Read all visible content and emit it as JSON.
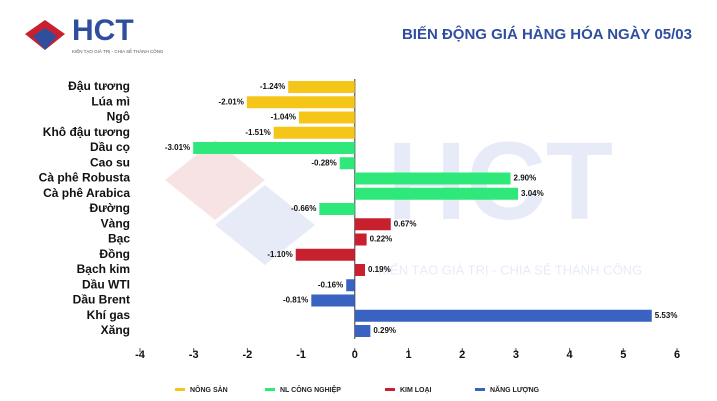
{
  "logo": {
    "name": "HCT",
    "tagline": "KIẾN TẠO GIÁ TRỊ - CHIA SẺ THÀNH CÔNG"
  },
  "chart_data": {
    "type": "bar",
    "orientation": "horizontal",
    "title": "BIẾN ĐỘNG GIÁ HÀNG HÓA NGÀY 05/03",
    "categories": [
      "Đậu tương",
      "Lúa mì",
      "Ngô",
      "Khô đậu tương",
      "Dầu cọ",
      "Cao su",
      "Cà phê Robusta",
      "Cà phê Arabica",
      "Đường",
      "Vàng",
      "Bạc",
      "Đồng",
      "Bạch kim",
      "Dầu WTI",
      "Dầu Brent",
      "Khí gas",
      "Xăng"
    ],
    "series": [
      {
        "name": "NÔNG SẢN",
        "color": "#f5c518",
        "values": [
          -1.24,
          -2.01,
          -1.04,
          -1.51,
          null,
          null,
          null,
          null,
          null,
          null,
          null,
          null,
          null,
          null,
          null,
          null,
          null
        ],
        "value_labels": [
          "-1.24%",
          "-2.01%",
          "-1.04%",
          "-1.51%",
          null,
          null,
          null,
          null,
          null,
          null,
          null,
          null,
          null,
          null,
          null,
          null,
          null
        ]
      },
      {
        "name": "NL CÔNG NGHIỆP",
        "color": "#2ee87a",
        "values": [
          null,
          null,
          null,
          null,
          -3.01,
          -0.28,
          2.9,
          3.04,
          -0.66,
          null,
          null,
          null,
          null,
          null,
          null,
          null,
          null
        ],
        "value_labels": [
          null,
          null,
          null,
          null,
          "-3.01%",
          "-0.28%",
          "2.90%",
          "3.04%",
          "-0.66%",
          null,
          null,
          null,
          null,
          null,
          null,
          null,
          null
        ]
      },
      {
        "name": "KIM LOẠI",
        "color": "#c8202e",
        "values": [
          null,
          null,
          null,
          null,
          null,
          null,
          null,
          null,
          null,
          0.67,
          0.22,
          -1.1,
          0.19,
          null,
          null,
          null,
          null
        ],
        "value_labels": [
          null,
          null,
          null,
          null,
          null,
          null,
          null,
          null,
          null,
          "0.67%",
          "0.22%",
          "-1.10%",
          "0.19%",
          null,
          null,
          null,
          null
        ]
      },
      {
        "name": "NĂNG LƯỢNG",
        "color": "#3a62c0",
        "values": [
          null,
          null,
          null,
          null,
          null,
          null,
          null,
          null,
          null,
          null,
          null,
          null,
          null,
          -0.16,
          -0.81,
          5.53,
          0.29
        ],
        "value_labels": [
          null,
          null,
          null,
          null,
          null,
          null,
          null,
          null,
          null,
          null,
          null,
          null,
          null,
          "-0.16%",
          "-0.81%",
          "5.53%",
          "0.29%"
        ]
      }
    ],
    "xlim": [
      -4,
      6
    ],
    "xticks": [
      -4,
      -3,
      -2,
      -1,
      0,
      1,
      2,
      3,
      4,
      5,
      6
    ],
    "legend": "bottom"
  }
}
